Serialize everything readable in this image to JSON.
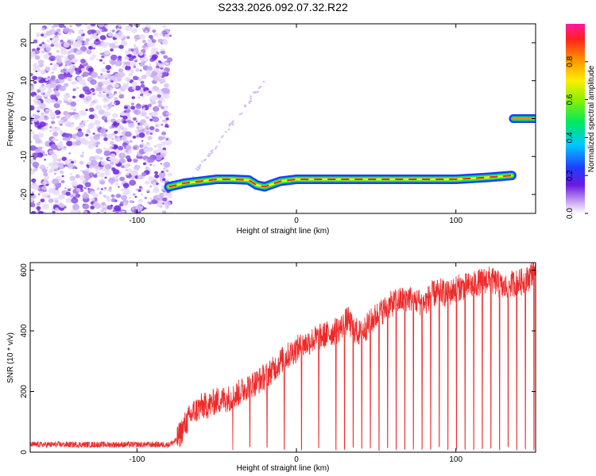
{
  "title": "S233.2026.092.07.32.R22",
  "colors": {
    "snr_line": "#ee2a2a",
    "scatter": "#7a2ae6",
    "axis": "#000000"
  },
  "chart_data": [
    {
      "type": "heatmap",
      "xlabel": "Height of straight line (km)",
      "ylabel": "Frequency (Hz)",
      "xlim": [
        -167,
        150
      ],
      "ylim": [
        -25,
        25
      ],
      "x_ticks": [
        -100,
        0,
        100
      ],
      "y_ticks": [
        -20,
        -10,
        0,
        10,
        20
      ],
      "grid": false,
      "colorbar": {
        "label": "Normalized spectral amplitude",
        "range": [
          0,
          1
        ],
        "ticks": [
          0.0,
          0.2,
          0.4,
          0.6,
          0.8
        ]
      },
      "signal_track": {
        "x": [
          -80,
          -70,
          -60,
          -50,
          -40,
          -30,
          -25,
          -20,
          -10,
          0,
          20,
          40,
          60,
          80,
          100,
          120,
          135
        ],
        "frequency": [
          -18,
          -17,
          -16.5,
          -16,
          -16,
          -16.2,
          -17.5,
          -18,
          -16.5,
          -16,
          -16,
          -16,
          -16,
          -16,
          -16,
          -15.5,
          -15
        ]
      },
      "secondary_track": {
        "x": [
          136,
          150
        ],
        "frequency": [
          0,
          0
        ]
      }
    },
    {
      "type": "line",
      "xlabel": "Height of straight line (km)",
      "ylabel": "SNR (10 * v/v)",
      "xlim": [
        -167,
        150
      ],
      "ylim": [
        0,
        625
      ],
      "x_ticks": [
        -100,
        0,
        100
      ],
      "y_ticks": [
        0,
        200,
        400,
        600
      ],
      "grid": false,
      "series": [
        {
          "x": [
            -167,
            -150,
            -130,
            -110,
            -90,
            -80,
            -75,
            -70,
            -65,
            -60,
            -55,
            -50,
            -45,
            -40,
            -35,
            -30,
            -25,
            -20,
            -15,
            -10,
            -5,
            0,
            5,
            10,
            15,
            20,
            25,
            30,
            32,
            35,
            40,
            45,
            50,
            55,
            60,
            65,
            70,
            75,
            80,
            85,
            90,
            95,
            100,
            105,
            110,
            115,
            120,
            125,
            130,
            135,
            140,
            145,
            150
          ],
          "values": [
            25,
            25,
            25,
            25,
            25,
            25,
            40,
            90,
            130,
            150,
            155,
            170,
            175,
            180,
            200,
            220,
            230,
            250,
            270,
            300,
            320,
            340,
            355,
            370,
            380,
            390,
            400,
            420,
            440,
            410,
            390,
            420,
            450,
            470,
            490,
            500,
            510,
            500,
            490,
            520,
            530,
            520,
            540,
            545,
            550,
            560,
            570,
            560,
            540,
            555,
            560,
            570,
            610
          ]
        }
      ]
    }
  ]
}
